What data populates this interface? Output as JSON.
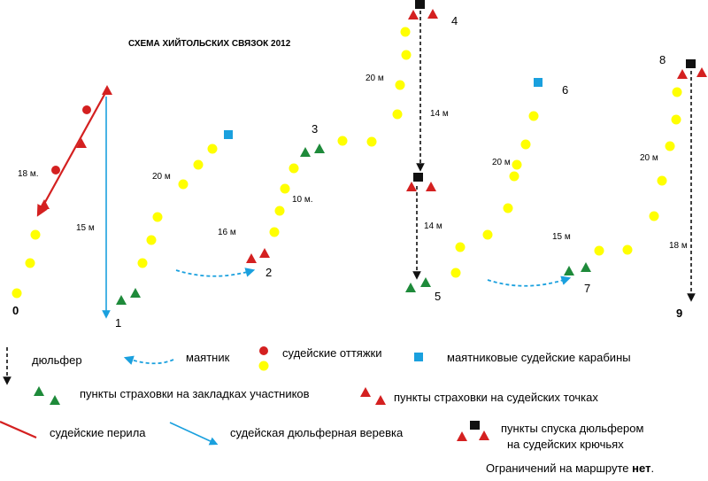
{
  "title": "СХЕМА ХИЙТОЛЬСКИХ СВЯЗОК 2012",
  "colors": {
    "yellow": "#ffff00",
    "red": "#d42020",
    "green": "#1e8a3a",
    "blue": "#1aa0de",
    "black": "#111111"
  },
  "points": [
    "0",
    "1",
    "2",
    "3",
    "4",
    "5",
    "6",
    "7",
    "8",
    "9"
  ],
  "distances": {
    "d_18m_dot": "18 м.",
    "d_15m_a": "15 м",
    "d_20m_a": "20 м",
    "d_16m": "16 м",
    "d_10m": "10 м.",
    "d_20m_b": "20 м",
    "d_14m_a": "14 м",
    "d_14m_b": "14 м",
    "d_20m_c": "20 м",
    "d_15m_b": "15 м",
    "d_20m_d": "20 м",
    "d_18m": "18 м"
  },
  "legend": {
    "dulfer": "дюльфер",
    "mayatnik": "маятник",
    "judge_ties": "судейские оттяжки",
    "pendulum_carabiners": "маятниковые судейские карабины",
    "participant_belay": "пункты страховки на закладках участников",
    "judge_belay": "пункты страховки на судейских точках",
    "judge_rails": "судейские перила",
    "judge_rope": "судейская дюльферная веревка",
    "descent_points_1": "пункты спуска дюльфером",
    "descent_points_2": "на судейских крючьях"
  },
  "footer": {
    "text": "Ограничений на маршруте ",
    "bold": "нет",
    "end": "."
  }
}
